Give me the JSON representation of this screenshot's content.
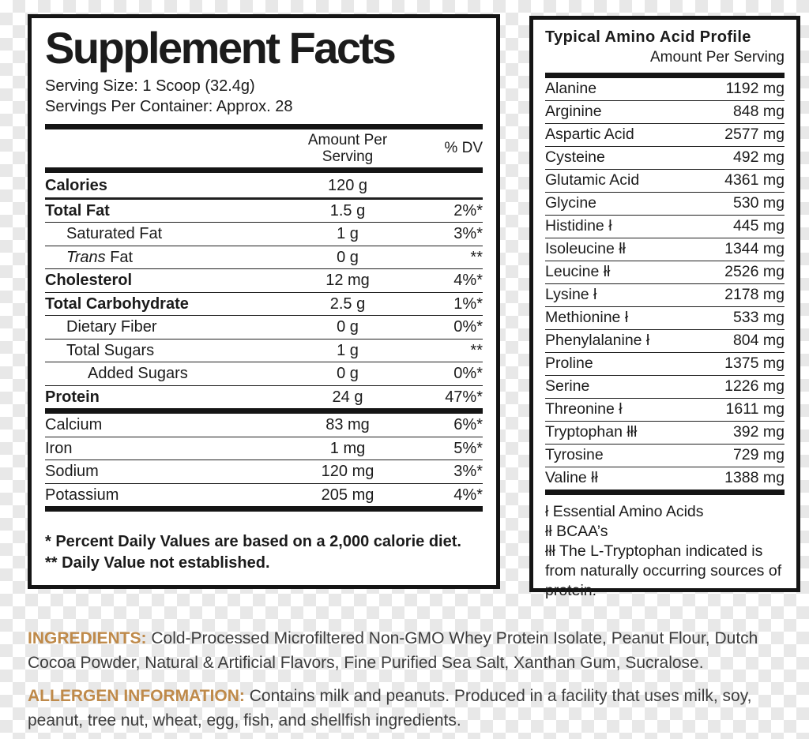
{
  "supplement_facts": {
    "title": "Supplement Facts",
    "serving_size": "Serving Size: 1 Scoop (32.4g)",
    "servings_per_container": "Servings Per Container: Approx. 28",
    "columns": {
      "amount": "Amount Per\nServing",
      "dv": "% DV"
    },
    "rows": [
      {
        "name": "Calories",
        "amount": "120 g",
        "dv": "",
        "bold": true,
        "rule": "medium"
      },
      {
        "name": "Total Fat",
        "amount": "1.5 g",
        "dv": "2%*",
        "bold": true
      },
      {
        "name": "Saturated Fat",
        "amount": "1 g",
        "dv": "3%*",
        "indent": 1
      },
      {
        "name_italic": "Trans",
        "name": "Fat",
        "amount": "0 g",
        "dv": "**",
        "indent": 1
      },
      {
        "name": "Cholesterol",
        "amount": "12 mg",
        "dv": "4%*",
        "bold": true
      },
      {
        "name": "Total Carbohydrate",
        "amount": "2.5 g",
        "dv": "1%*",
        "bold": true
      },
      {
        "name": "Dietary Fiber",
        "amount": "0 g",
        "dv": "0%*",
        "indent": 1
      },
      {
        "name": "Total Sugars",
        "amount": "1 g",
        "dv": "**",
        "indent": 1
      },
      {
        "name": "Added Sugars",
        "amount": "0 g",
        "dv": "0%*",
        "indent": 2
      },
      {
        "name": "Protein",
        "amount": "24 g",
        "dv": "47%*",
        "bold": true
      }
    ],
    "mineral_rows": [
      {
        "name": "Calcium",
        "amount": "83 mg",
        "dv": "6%*"
      },
      {
        "name": "Iron",
        "amount": "1 mg",
        "dv": "5%*"
      },
      {
        "name": "Sodium",
        "amount": "120 mg",
        "dv": "3%*"
      },
      {
        "name": "Potassium",
        "amount": "205 mg",
        "dv": "4%*"
      }
    ],
    "footnotes": [
      "* Percent Daily Values are based on a 2,000 calorie diet.",
      "** Daily Value not established."
    ]
  },
  "amino_profile": {
    "title": "Typical Amino Acid Profile",
    "subtitle": "Amount Per Serving",
    "rows": [
      {
        "name": "Alanine",
        "amount": "1192 mg"
      },
      {
        "name": "Arginine",
        "amount": "848 mg"
      },
      {
        "name": "Aspartic Acid",
        "amount": "2577 mg"
      },
      {
        "name": "Cysteine",
        "amount": "492 mg"
      },
      {
        "name": "Glutamic Acid",
        "amount": "4361 mg"
      },
      {
        "name": "Glycine",
        "amount": "530 mg"
      },
      {
        "name": "Histidine ł",
        "amount": "445 mg"
      },
      {
        "name": "Isoleucine łł",
        "amount": "1344 mg"
      },
      {
        "name": "Leucine łł",
        "amount": "2526 mg"
      },
      {
        "name": "Lysine ł",
        "amount": "2178 mg"
      },
      {
        "name": "Methionine ł",
        "amount": "533 mg"
      },
      {
        "name": "Phenylalanine ł",
        "amount": "804 mg"
      },
      {
        "name": "Proline",
        "amount": "1375 mg"
      },
      {
        "name": "Serine",
        "amount": "1226 mg"
      },
      {
        "name": "Threonine ł",
        "amount": "1611 mg"
      },
      {
        "name": "Tryptophan łłł",
        "amount": "392 mg"
      },
      {
        "name": "Tyrosine",
        "amount": "729 mg"
      },
      {
        "name": "Valine łł",
        "amount": "1388 mg"
      }
    ],
    "footnotes": [
      "ł Essential Amino Acids",
      "łł BCAA’s",
      "łłł The L-Tryptophan indicated is from naturally occurring sources of protein."
    ]
  },
  "ingredients_section": {
    "label": "INGREDIENTS:",
    "text": " Cold-Processed Microfiltered Non-GMO Whey Protein Isolate, Peanut Flour, Dutch Cocoa Powder, Natural & Artificial Flavors, Fine Purified Sea Salt, Xanthan Gum, Sucralose."
  },
  "allergen_section": {
    "label": "ALLERGEN INFORMATION:",
    "text": " Contains milk and peanuts. Produced in a facility that uses milk, soy, peanut, tree nut, wheat, egg, fish, and shellfish ingredients."
  },
  "colors": {
    "accent": "#bf8a4a",
    "ink": "#1b1b1b",
    "body_text": "#3c3c3c",
    "checker": "#e8e8e8"
  }
}
